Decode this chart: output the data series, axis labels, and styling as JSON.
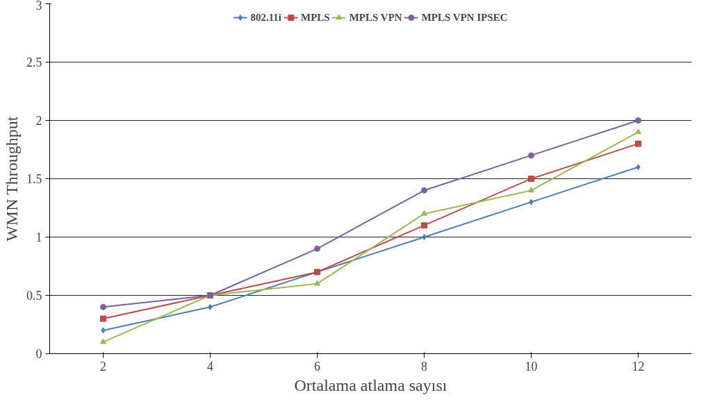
{
  "chart_data": {
    "type": "line",
    "xlabel": "Ortalama atlama sayısı",
    "ylabel": "WMN Throughput",
    "categories": [
      "2",
      "4",
      "6",
      "8",
      "10",
      "12"
    ],
    "series": [
      {
        "name": "802.11i",
        "color": "#4a7ebb",
        "marker": "diamond",
        "values": [
          0.2,
          0.4,
          0.7,
          1.0,
          1.3,
          1.6
        ]
      },
      {
        "name": "MPLS",
        "color": "#be4b48",
        "marker": "square",
        "values": [
          0.3,
          0.5,
          0.7,
          1.1,
          1.5,
          1.8
        ]
      },
      {
        "name": "MPLS VPN",
        "color": "#98b954",
        "marker": "triangle",
        "values": [
          0.1,
          0.5,
          0.6,
          1.2,
          1.4,
          1.9
        ]
      },
      {
        "name": "MPLS VPN IPSEC",
        "color": "#7d60a0",
        "marker": "circle",
        "values": [
          0.4,
          0.5,
          0.9,
          1.4,
          1.7,
          2.0
        ]
      }
    ],
    "ylim": [
      0,
      3
    ],
    "yticks": [
      0,
      0.5,
      1,
      1.5,
      2,
      2.5,
      3
    ],
    "grid": "y",
    "legend": "top",
    "line_style": "solid"
  }
}
